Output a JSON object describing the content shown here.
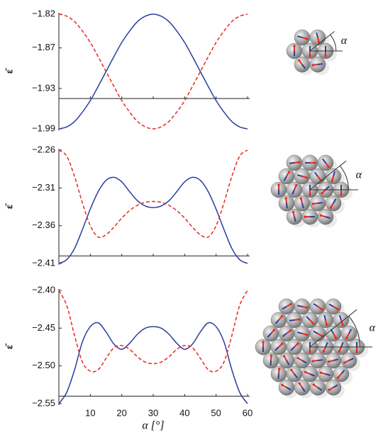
{
  "chart_data": [
    {
      "type": "line",
      "ylabel": "ε̄",
      "annotation": "α",
      "x": [
        0,
        2.5,
        5,
        7.5,
        10,
        12.5,
        15,
        17.5,
        20,
        22.5,
        25,
        27.5,
        30,
        32.5,
        35,
        37.5,
        40,
        42.5,
        45,
        47.5,
        50,
        52.5,
        55,
        57.5,
        60
      ],
      "series": [
        {
          "color": "#2b3d9e",
          "dash": false,
          "values": [
            -1.99,
            -1.987,
            -1.979,
            -1.965,
            -1.948,
            -1.927,
            -1.905,
            -1.883,
            -1.862,
            -1.845,
            -1.831,
            -1.823,
            -1.82,
            -1.823,
            -1.831,
            -1.845,
            -1.862,
            -1.883,
            -1.905,
            -1.927,
            -1.948,
            -1.965,
            -1.979,
            -1.987,
            -1.99
          ]
        },
        {
          "color": "#e8281e",
          "dash": true,
          "values": [
            -1.82,
            -1.823,
            -1.831,
            -1.845,
            -1.862,
            -1.883,
            -1.905,
            -1.927,
            -1.948,
            -1.965,
            -1.979,
            -1.987,
            -1.99,
            -1.987,
            -1.979,
            -1.965,
            -1.948,
            -1.927,
            -1.905,
            -1.883,
            -1.862,
            -1.845,
            -1.831,
            -1.823,
            -1.82
          ]
        }
      ],
      "xlim": [
        0,
        60
      ],
      "xticks": [
        10,
        20,
        30,
        40,
        50,
        60
      ],
      "xtick_labels": false,
      "x_axis_at": -1.945,
      "ylim": [
        -1.99,
        -1.82
      ],
      "yticks": [
        {
          "value": -1.82,
          "label": "−1.82"
        },
        {
          "value": -1.87,
          "label": "−1.87"
        },
        {
          "value": -1.93,
          "label": "−1.93"
        },
        {
          "value": -1.99,
          "label": "−1.99"
        }
      ]
    },
    {
      "type": "line",
      "ylabel": "ε̄",
      "annotation": "α",
      "x": [
        0,
        2.5,
        5,
        7.5,
        10,
        12.5,
        15,
        17.5,
        20,
        22.5,
        25,
        27.5,
        30,
        32.5,
        35,
        37.5,
        40,
        42.5,
        45,
        47.5,
        50,
        52.5,
        55,
        57.5,
        60
      ],
      "series": [
        {
          "color": "#2b3d9e",
          "dash": false,
          "values": [
            -2.41,
            -2.405,
            -2.39,
            -2.365,
            -2.338,
            -2.315,
            -2.3,
            -2.296,
            -2.302,
            -2.315,
            -2.327,
            -2.334,
            -2.336,
            -2.334,
            -2.327,
            -2.315,
            -2.302,
            -2.296,
            -2.3,
            -2.315,
            -2.338,
            -2.365,
            -2.39,
            -2.405,
            -2.41
          ]
        },
        {
          "color": "#e8281e",
          "dash": true,
          "values": [
            -2.26,
            -2.268,
            -2.295,
            -2.33,
            -2.36,
            -2.375,
            -2.372,
            -2.362,
            -2.35,
            -2.34,
            -2.333,
            -2.329,
            -2.328,
            -2.329,
            -2.333,
            -2.34,
            -2.35,
            -2.362,
            -2.372,
            -2.375,
            -2.36,
            -2.33,
            -2.295,
            -2.268,
            -2.26
          ]
        }
      ],
      "xlim": [
        0,
        60
      ],
      "xticks": [
        10,
        20,
        30,
        40,
        50,
        60
      ],
      "xtick_labels": false,
      "x_axis_at": -2.4,
      "ylim": [
        -2.41,
        -2.26
      ],
      "yticks": [
        {
          "value": -2.26,
          "label": "−2.26"
        },
        {
          "value": -2.31,
          "label": "−2.31"
        },
        {
          "value": -2.36,
          "label": "−2.36"
        },
        {
          "value": -2.41,
          "label": "−2.41"
        }
      ]
    },
    {
      "type": "line",
      "ylabel": "ε̄",
      "annotation": "α",
      "xlabel": "α [°]",
      "x": [
        0,
        2.5,
        5,
        7.5,
        10,
        12.5,
        15,
        17.5,
        20,
        22.5,
        25,
        27.5,
        30,
        32.5,
        35,
        37.5,
        40,
        42.5,
        45,
        47.5,
        50,
        52.5,
        55,
        57.5,
        60
      ],
      "series": [
        {
          "color": "#2b3d9e",
          "dash": false,
          "values": [
            -2.55,
            -2.535,
            -2.505,
            -2.468,
            -2.448,
            -2.443,
            -2.455,
            -2.471,
            -2.478,
            -2.47,
            -2.458,
            -2.45,
            -2.448,
            -2.45,
            -2.458,
            -2.47,
            -2.478,
            -2.471,
            -2.455,
            -2.443,
            -2.448,
            -2.468,
            -2.505,
            -2.535,
            -2.55
          ]
        },
        {
          "color": "#e8281e",
          "dash": true,
          "values": [
            -2.4,
            -2.42,
            -2.46,
            -2.495,
            -2.507,
            -2.505,
            -2.49,
            -2.476,
            -2.473,
            -2.478,
            -2.488,
            -2.495,
            -2.497,
            -2.495,
            -2.488,
            -2.478,
            -2.473,
            -2.476,
            -2.49,
            -2.505,
            -2.507,
            -2.495,
            -2.46,
            -2.42,
            -2.4
          ]
        }
      ],
      "xlim": [
        0,
        60
      ],
      "xticks": [
        10,
        20,
        30,
        40,
        50,
        60
      ],
      "xtick_labels": true,
      "x_axis_at": -2.54,
      "ylim": [
        -2.55,
        -2.4
      ],
      "yticks": [
        {
          "value": -2.4,
          "label": "−2.40"
        },
        {
          "value": -2.45,
          "label": "−2.45"
        },
        {
          "value": -2.5,
          "label": "−2.50"
        },
        {
          "value": -2.55,
          "label": "−2.55"
        }
      ]
    }
  ]
}
